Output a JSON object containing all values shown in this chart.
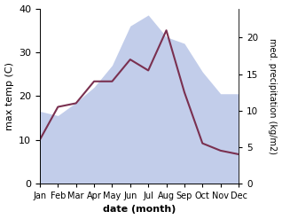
{
  "months": [
    "Jan",
    "Feb",
    "Mar",
    "Apr",
    "May",
    "Jun",
    "Jul",
    "Aug",
    "Sep",
    "Oct",
    "Nov",
    "Dec"
  ],
  "max_temp": [
    16.5,
    15.5,
    18.5,
    22.0,
    27.0,
    36.0,
    38.5,
    33.5,
    32.0,
    25.5,
    20.5,
    20.5
  ],
  "med_precip": [
    6.0,
    10.5,
    11.0,
    14.0,
    14.0,
    17.0,
    15.5,
    21.0,
    12.5,
    5.5,
    4.5,
    4.0
  ],
  "temp_fill_color": "#bcc8e8",
  "precip_color": "#7a3050",
  "ylabel_left": "max temp (C)",
  "ylabel_right": "med. precipitation (kg/m2)",
  "xlabel": "date (month)",
  "ylim_left": [
    0,
    40
  ],
  "ylim_right": [
    0,
    24
  ],
  "yticks_left": [
    0,
    10,
    20,
    30,
    40
  ],
  "yticks_right": [
    0,
    5,
    10,
    15,
    20
  ],
  "bg_color": "#ffffff"
}
